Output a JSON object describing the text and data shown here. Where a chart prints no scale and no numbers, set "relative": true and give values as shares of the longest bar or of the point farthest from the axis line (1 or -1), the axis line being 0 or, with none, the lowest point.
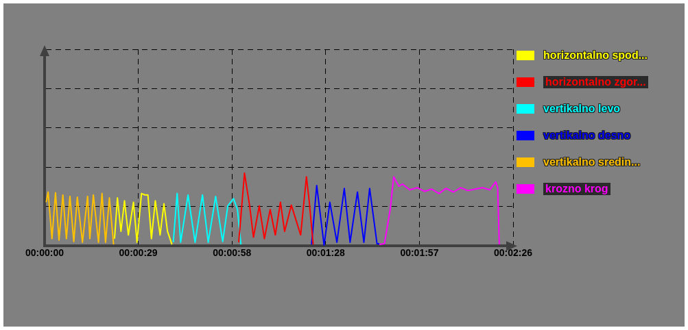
{
  "chart_data": {
    "type": "line",
    "relative": true,
    "marker": "none",
    "line_style": "solid",
    "grid": true,
    "legend": "right",
    "xlim": [
      0,
      146
    ],
    "xticks": [
      {
        "value": 0,
        "label": "00:00:00"
      },
      {
        "value": 29.2,
        "label": "00:00:29"
      },
      {
        "value": 58.4,
        "label": "00:00:58"
      },
      {
        "value": 87.6,
        "label": "00:01:28"
      },
      {
        "value": 116.8,
        "label": "00:01:57"
      },
      {
        "value": 146,
        "label": "00:02:26"
      }
    ],
    "series": [
      {
        "name": "horizontalno spod...",
        "color": "#ffff00",
        "x": [
          21.8,
          22.7,
          23.8,
          24.9,
          26.1,
          27.7,
          28.8,
          30.2,
          31.3,
          32.2,
          33.3,
          34.5,
          36.0,
          37.2,
          38.3,
          39.7
        ],
        "values": [
          0.1,
          0.66,
          0.2,
          0.62,
          0.15,
          0.6,
          0.05,
          0.72,
          0.7,
          0.7,
          0.1,
          0.62,
          0.15,
          0.58,
          0.2,
          0.02
        ]
      },
      {
        "name": "horizontalno zgor...",
        "color": "#ff0000",
        "x": [
          60.5,
          62.3,
          63.9,
          65.1,
          66.9,
          68.5,
          70.3,
          71.9,
          73.5,
          74.8,
          76.9,
          79.8,
          81.6,
          82.5,
          83.7
        ],
        "values": [
          0.05,
          1.0,
          0.55,
          0.12,
          0.55,
          0.1,
          0.5,
          0.15,
          0.6,
          0.2,
          0.56,
          0.15,
          0.95,
          0.6,
          0.02
        ]
      },
      {
        "name": "vertikalno levo",
        "color": "#00ffff",
        "x": [
          40.1,
          41.3,
          42.4,
          44.7,
          46.9,
          49.2,
          51.0,
          53.3,
          55.5,
          57.1,
          58.9,
          60.1,
          61.2
        ],
        "values": [
          0.05,
          0.72,
          0.05,
          0.7,
          0.05,
          0.7,
          0.05,
          0.68,
          0.06,
          0.55,
          0.65,
          0.5,
          0.02
        ]
      },
      {
        "name": "vertikalno desno",
        "color": "#0000ff",
        "x": [
          83.2,
          84.8,
          87.1,
          88.9,
          91.1,
          93.4,
          95.2,
          97.5,
          99.5,
          101.3,
          103.6,
          104.3
        ],
        "values": [
          0.02,
          0.83,
          0.01,
          0.6,
          0.05,
          0.79,
          0.05,
          0.74,
          0.05,
          0.79,
          0.03,
          0.03
        ]
      },
      {
        "name": "vertikalno sredin...",
        "color": "#ffc000",
        "x": [
          0.5,
          1.1,
          2.3,
          3.4,
          4.5,
          5.7,
          6.8,
          7.9,
          9.1,
          10.2,
          11.8,
          13.4,
          14.1,
          15.2,
          16.8,
          17.9,
          19.0,
          20.2,
          21.5
        ],
        "values": [
          0.6,
          0.74,
          0.1,
          0.73,
          0.08,
          0.7,
          0.1,
          0.68,
          0.06,
          0.67,
          0.05,
          0.68,
          0.1,
          0.7,
          0.05,
          0.72,
          0.05,
          0.66,
          0.02
        ]
      },
      {
        "name": "krozno krog",
        "color": "#ff00ff",
        "x": [
          104.3,
          105.9,
          107.7,
          108.8,
          110.4,
          111.5,
          113.8,
          116.1,
          118.4,
          120.6,
          122.9,
          125.1,
          127.4,
          129.7,
          131.9,
          134.2,
          136.5,
          138.7,
          140.6,
          141.2,
          141.7
        ],
        "values": [
          0.02,
          0.03,
          0.5,
          0.95,
          0.82,
          0.85,
          0.77,
          0.8,
          0.75,
          0.78,
          0.72,
          0.79,
          0.74,
          0.8,
          0.76,
          0.78,
          0.8,
          0.77,
          0.88,
          0.8,
          0.02
        ]
      }
    ]
  }
}
